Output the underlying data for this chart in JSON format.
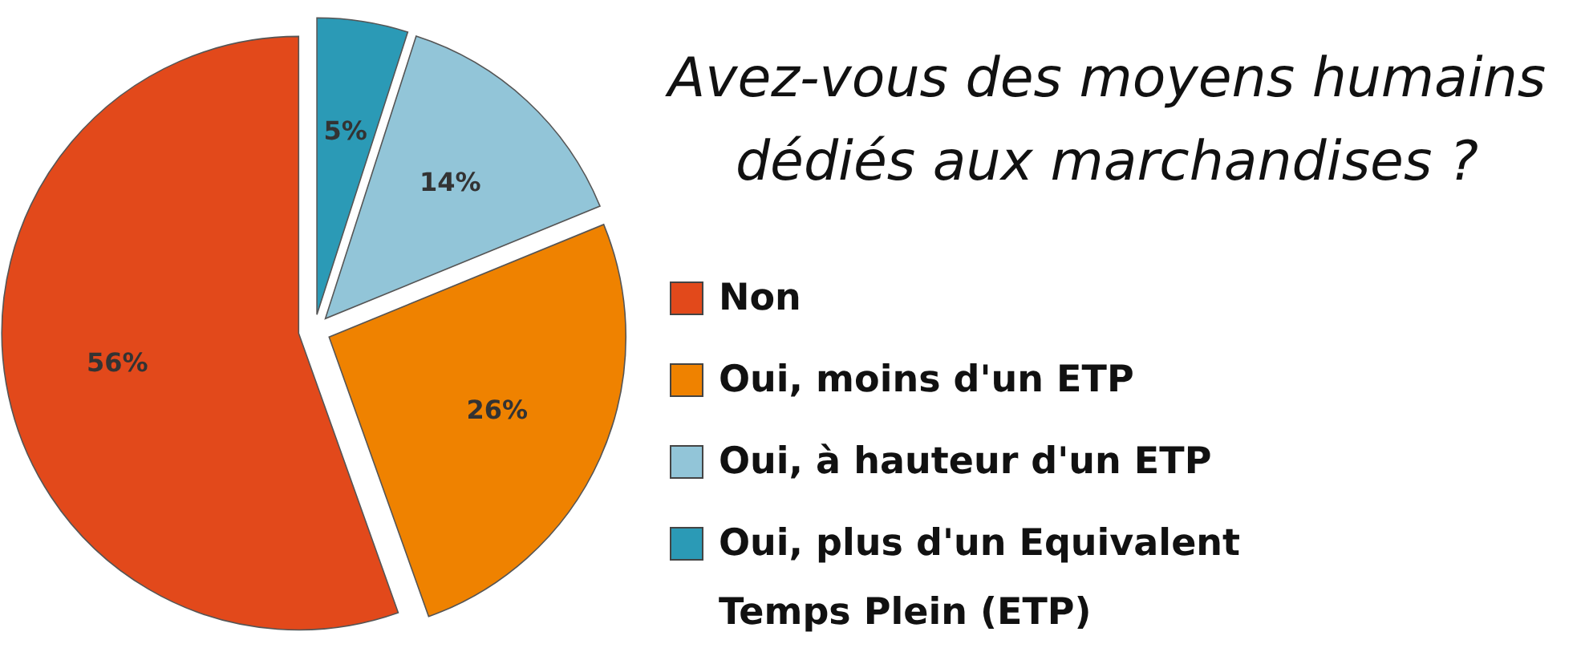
{
  "chart_data": {
    "type": "pie",
    "title": "Avez-vous des moyens humains dédiés aux marchandises ?",
    "categories": [
      "Non",
      "Oui, moins d'un ETP",
      "Oui, à hauteur d'un ETP",
      "Oui, plus d'un Equivalent Temps Plein (ETP)"
    ],
    "values": [
      56,
      26,
      14,
      5
    ],
    "value_labels": [
      "56%",
      "26%",
      "14%",
      "5%"
    ],
    "colors": [
      "#e2491b",
      "#ef8200",
      "#92c5d8",
      "#2b9ab6"
    ],
    "legend": "right"
  }
}
